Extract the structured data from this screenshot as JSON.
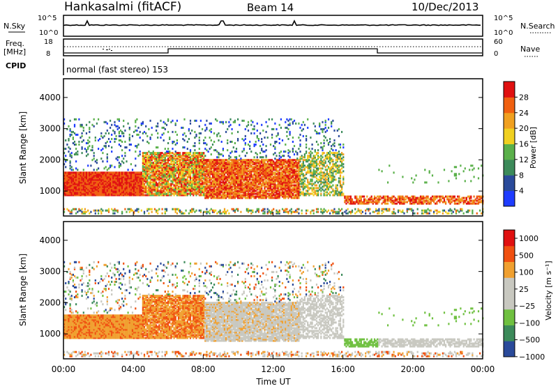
{
  "header": {
    "title": "Hankasalmi (fitACF)",
    "beam": "Beam 14",
    "date": "10/Dec/2013"
  },
  "top_strip": {
    "left_label": "N.Sky",
    "right_label": "N.Search",
    "tick_top": "10^5",
    "tick_bottom": "10^0"
  },
  "freq_strip": {
    "left_label_1": "Freq.",
    "left_label_2": "[MHz]",
    "tick_top": "18",
    "tick_bottom": "8",
    "right_label": "Nave",
    "right_tick_top": "60",
    "right_tick_bottom": "0"
  },
  "cpid": {
    "label": "CPID",
    "value": "normal (fast stereo) 153"
  },
  "colors": {
    "power_scale": [
      "#1e3cff",
      "#2a4a9a",
      "#3c8a5a",
      "#5ab04a",
      "#f0d020",
      "#f0a020",
      "#f06010",
      "#e01010"
    ],
    "velocity_scale": [
      "#e01010",
      "#f05010",
      "#f0a030",
      "#c8c8c0",
      "#c8c8c0",
      "#6fc040",
      "#3c8a5a",
      "#2a4a9a"
    ]
  },
  "chart_data": [
    {
      "type": "heatmap",
      "title": "",
      "ylabel": "Slant Range [km]",
      "xlabel": "",
      "ylim": [
        200,
        4600
      ],
      "yticks": [
        "1000",
        "2000",
        "3000",
        "4000"
      ],
      "colorbar_label": "Power [dB]",
      "colorbar_ticks": [
        "4",
        "8",
        "12",
        "16",
        "20",
        "24",
        "28"
      ]
    },
    {
      "type": "heatmap",
      "title": "",
      "ylabel": "Slant Range [km]",
      "xlabel": "Time UT",
      "ylim": [
        200,
        4600
      ],
      "yticks": [
        "1000",
        "2000",
        "3000",
        "4000"
      ],
      "xticks": [
        "00:00",
        "04:00",
        "08:00",
        "12:00",
        "16:00",
        "20:00",
        "00:00"
      ],
      "colorbar_label": "Velocity [m s⁻¹]",
      "colorbar_ticks": [
        "1000",
        "500",
        "100",
        "25",
        "−25",
        "−100",
        "−500",
        "−1000"
      ]
    }
  ]
}
